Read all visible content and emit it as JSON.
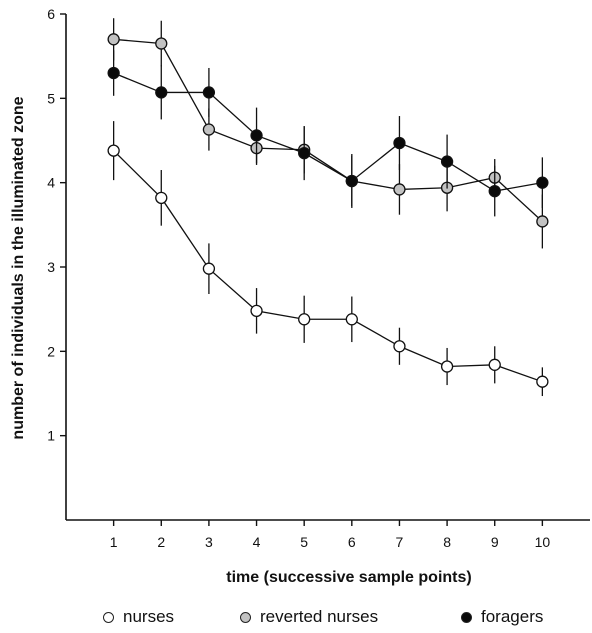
{
  "chart_data": {
    "type": "line",
    "title": "",
    "xlabel": "time (successive sample points)",
    "ylabel": "number of individuals in the illuminated zone",
    "x": [
      1,
      2,
      3,
      4,
      5,
      6,
      7,
      8,
      9,
      10
    ],
    "xlim": [
      0,
      11
    ],
    "ylim": [
      0,
      6
    ],
    "xticks": [
      "1",
      "2",
      "3",
      "4",
      "5",
      "6",
      "7",
      "8",
      "9",
      "10"
    ],
    "yticks": [
      "1",
      "2",
      "3",
      "4",
      "5",
      "6"
    ],
    "grid": false,
    "legend_position": "bottom",
    "series": [
      {
        "name": "nurses",
        "fill": "#ffffff",
        "values": [
          4.38,
          3.82,
          2.98,
          2.48,
          2.38,
          2.38,
          2.06,
          1.82,
          1.84,
          1.64
        ],
        "error": [
          0.35,
          0.33,
          0.3,
          0.27,
          0.28,
          0.27,
          0.22,
          0.22,
          0.22,
          0.17
        ]
      },
      {
        "name": "reverted nurses",
        "fill": "#c2c2c2",
        "values": [
          5.7,
          5.65,
          4.63,
          4.41,
          4.39,
          4.02,
          3.92,
          3.94,
          4.06,
          3.54
        ],
        "error": [
          0.25,
          0.27,
          0.25,
          0.2,
          0.28,
          0.3,
          0.3,
          0.28,
          0.22,
          0.32
        ]
      },
      {
        "name": "foragers",
        "fill": "#0a0a0a",
        "values": [
          5.3,
          5.07,
          5.07,
          4.56,
          4.35,
          4.02,
          4.47,
          4.25,
          3.9,
          4.0
        ],
        "error": [
          0.27,
          0.32,
          0.29,
          0.33,
          0.32,
          0.32,
          0.32,
          0.32,
          0.3,
          0.3
        ]
      }
    ]
  }
}
